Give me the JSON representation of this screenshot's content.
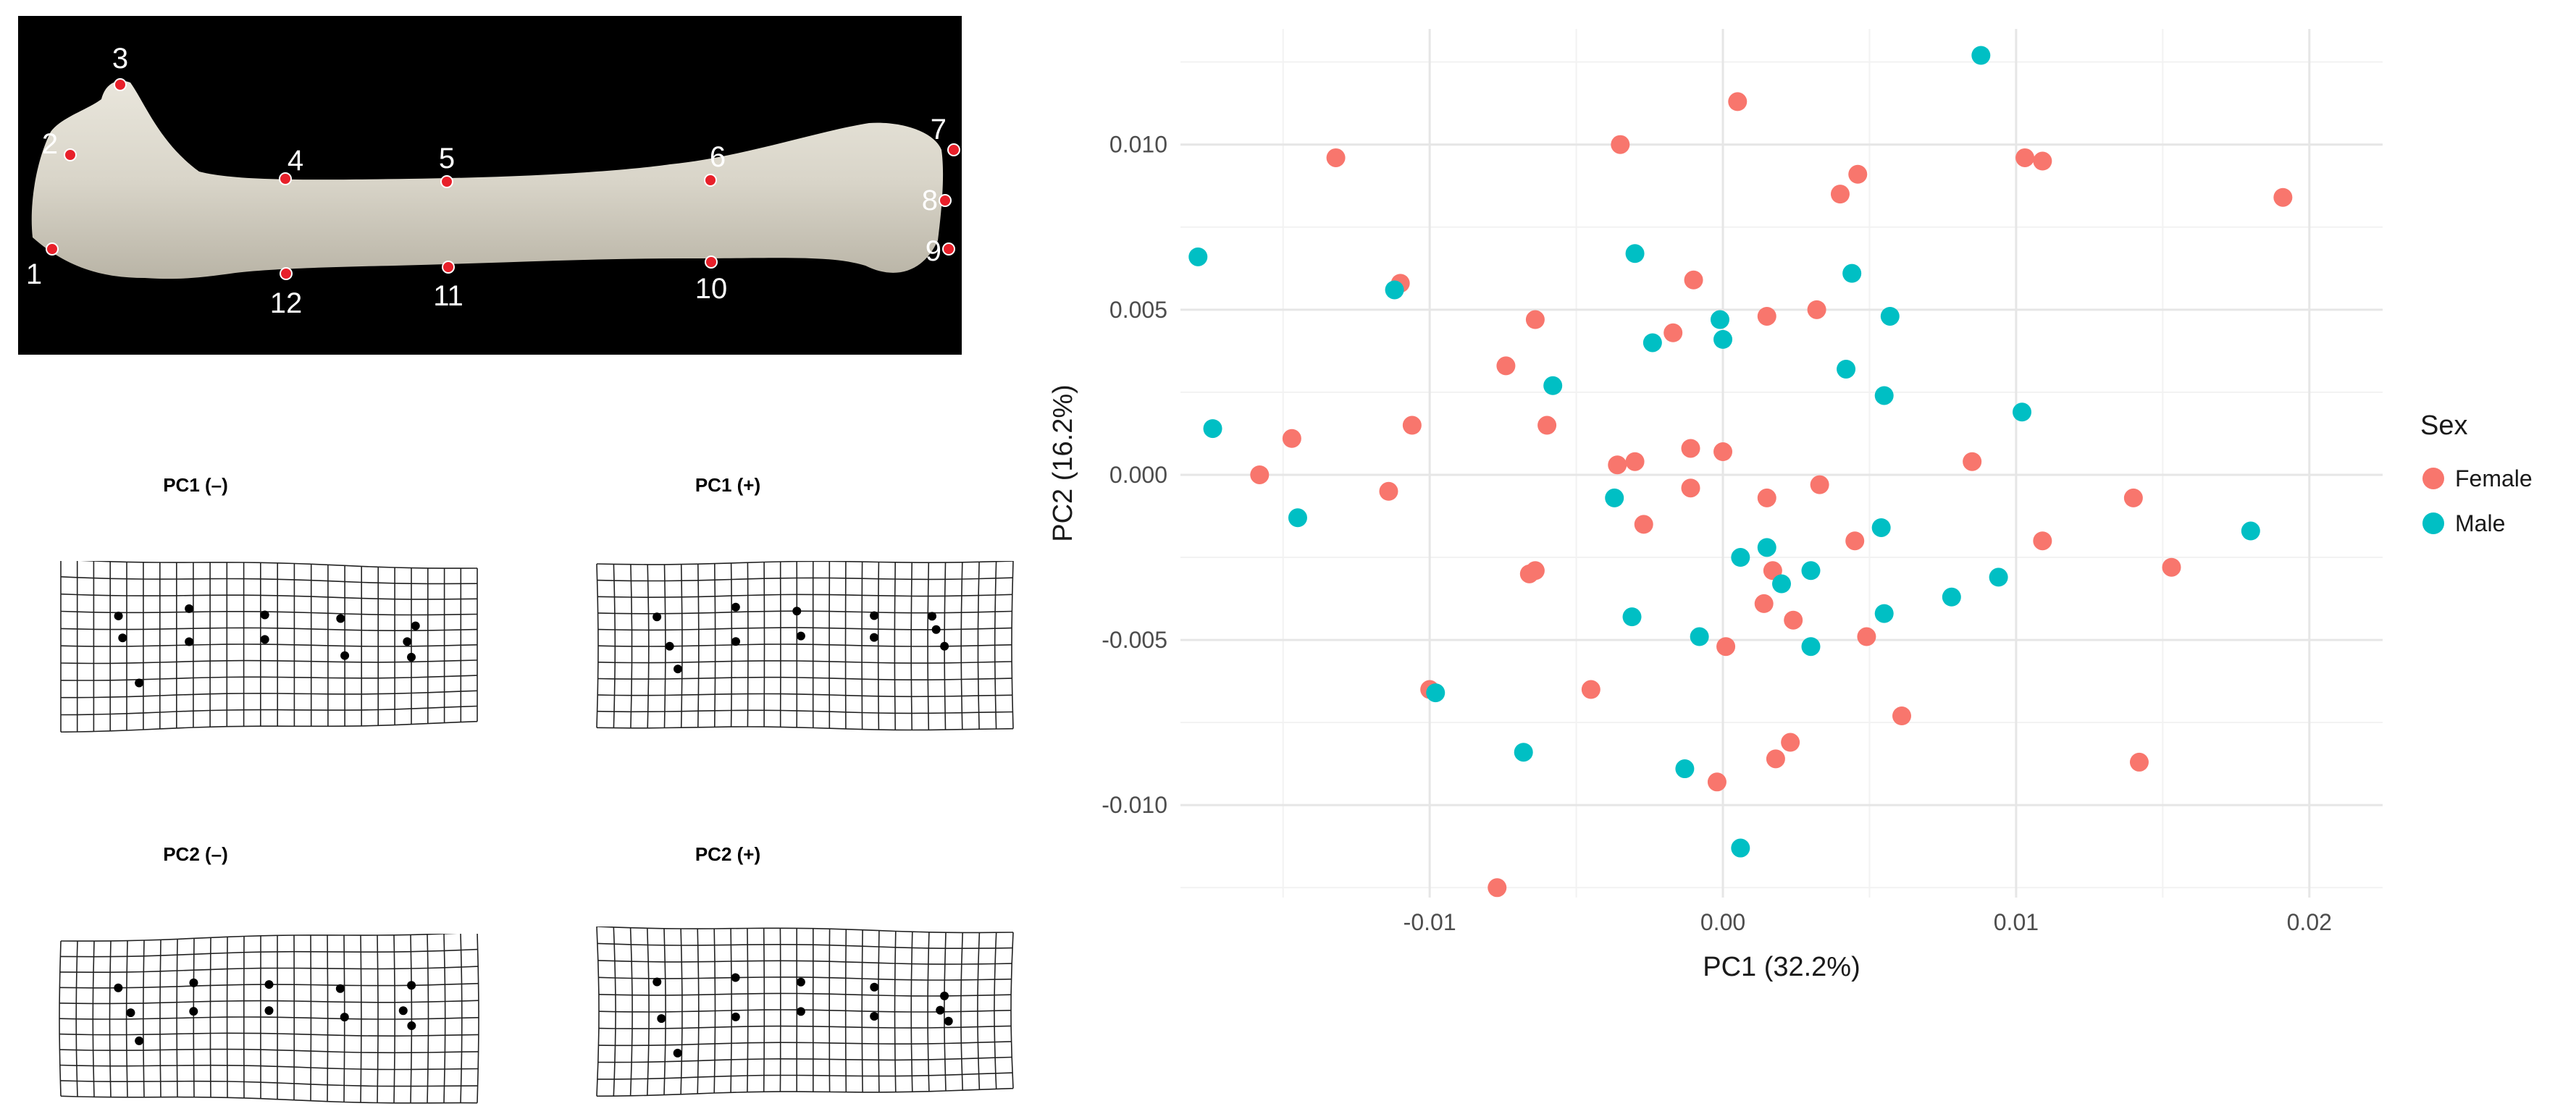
{
  "bone_panel": {
    "landmarks": [
      "1",
      "2",
      "3",
      "4",
      "5",
      "6",
      "7",
      "8",
      "9",
      "10",
      "11",
      "12"
    ]
  },
  "deformation_grids": [
    {
      "title": "PC1 (–)"
    },
    {
      "title": "PC1 (+)"
    },
    {
      "title": "PC2 (–)"
    },
    {
      "title": "PC2 (+)"
    }
  ],
  "colors": {
    "female": "#F8766D",
    "male": "#00BFC4",
    "landmark": "#e8202a"
  },
  "chart_data": {
    "type": "scatter",
    "xlabel": "PC1 (32.2%)",
    "ylabel": "PC2 (16.2%)",
    "xlim": [
      -0.0185,
      0.0225
    ],
    "ylim": [
      -0.0128,
      0.0135
    ],
    "x_ticks": [
      -0.01,
      0.0,
      0.01,
      0.02
    ],
    "x_tick_labels": [
      "-0.01",
      "0.00",
      "0.01",
      "0.02"
    ],
    "y_ticks": [
      -0.01,
      -0.005,
      0.0,
      0.005,
      0.01
    ],
    "y_tick_labels": [
      "-0.010",
      "-0.005",
      "0.000",
      "0.005",
      "0.010"
    ],
    "grid": true,
    "legend": {
      "title": "Sex",
      "placement": "right"
    },
    "series": [
      {
        "name": "Female",
        "color": "#F8766D",
        "points": [
          [
            0.0005,
            0.0113
          ],
          [
            -0.0035,
            0.01
          ],
          [
            -0.0132,
            0.0096
          ],
          [
            0.0046,
            0.0091
          ],
          [
            0.0103,
            0.0096
          ],
          [
            0.0109,
            0.0095
          ],
          [
            0.004,
            0.0085
          ],
          [
            0.0191,
            0.0084
          ],
          [
            -0.011,
            0.0058
          ],
          [
            -0.001,
            0.0059
          ],
          [
            0.0015,
            0.0048
          ],
          [
            0.0032,
            0.005
          ],
          [
            -0.0064,
            0.0047
          ],
          [
            -0.0017,
            0.0043
          ],
          [
            -0.0074,
            0.0033
          ],
          [
            -0.0106,
            0.0015
          ],
          [
            -0.006,
            0.0015
          ],
          [
            -0.0147,
            0.0011
          ],
          [
            -0.0158,
            0.0
          ],
          [
            -0.0011,
            0.0008
          ],
          [
            0.0,
            0.0007
          ],
          [
            -0.0036,
            0.0003
          ],
          [
            -0.003,
            0.0004
          ],
          [
            0.0085,
            0.0004
          ],
          [
            -0.0114,
            -0.0005
          ],
          [
            -0.0011,
            -0.0004
          ],
          [
            0.0033,
            -0.0003
          ],
          [
            0.0015,
            -0.0007
          ],
          [
            0.014,
            -0.0007
          ],
          [
            -0.0027,
            -0.0015
          ],
          [
            0.0045,
            -0.002
          ],
          [
            0.0109,
            -0.002
          ],
          [
            0.0017,
            -0.0029
          ],
          [
            -0.0066,
            -0.003
          ],
          [
            -0.0064,
            -0.0029
          ],
          [
            0.0153,
            -0.0028
          ],
          [
            0.0014,
            -0.0039
          ],
          [
            0.0024,
            -0.0044
          ],
          [
            0.0049,
            -0.0049
          ],
          [
            0.0001,
            -0.0052
          ],
          [
            -0.01,
            -0.0065
          ],
          [
            -0.0045,
            -0.0065
          ],
          [
            0.0061,
            -0.0073
          ],
          [
            0.0023,
            -0.0081
          ],
          [
            0.0018,
            -0.0086
          ],
          [
            0.0142,
            -0.0087
          ],
          [
            -0.0002,
            -0.0093
          ],
          [
            -0.0077,
            -0.0125
          ]
        ]
      },
      {
        "name": "Male",
        "color": "#00BFC4",
        "points": [
          [
            0.0088,
            0.0127
          ],
          [
            -0.0179,
            0.0066
          ],
          [
            -0.003,
            0.0067
          ],
          [
            -0.0112,
            0.0056
          ],
          [
            0.0044,
            0.0061
          ],
          [
            -0.0001,
            0.0047
          ],
          [
            0.0057,
            0.0048
          ],
          [
            -0.0024,
            0.004
          ],
          [
            0.0,
            0.0041
          ],
          [
            0.0042,
            0.0032
          ],
          [
            -0.0058,
            0.0027
          ],
          [
            0.0055,
            0.0024
          ],
          [
            0.0102,
            0.0019
          ],
          [
            -0.0174,
            0.0014
          ],
          [
            -0.0145,
            -0.0013
          ],
          [
            -0.0037,
            -0.0007
          ],
          [
            0.0054,
            -0.0016
          ],
          [
            0.0015,
            -0.0022
          ],
          [
            0.018,
            -0.0017
          ],
          [
            0.0006,
            -0.0025
          ],
          [
            0.003,
            -0.0029
          ],
          [
            0.002,
            -0.0033
          ],
          [
            0.0094,
            -0.0031
          ],
          [
            -0.0031,
            -0.0043
          ],
          [
            0.0055,
            -0.0042
          ],
          [
            0.0078,
            -0.0037
          ],
          [
            -0.0008,
            -0.0049
          ],
          [
            0.003,
            -0.0052
          ],
          [
            -0.0098,
            -0.0066
          ],
          [
            -0.0068,
            -0.0084
          ],
          [
            -0.0013,
            -0.0089
          ],
          [
            0.0006,
            -0.0113
          ]
        ]
      }
    ]
  }
}
